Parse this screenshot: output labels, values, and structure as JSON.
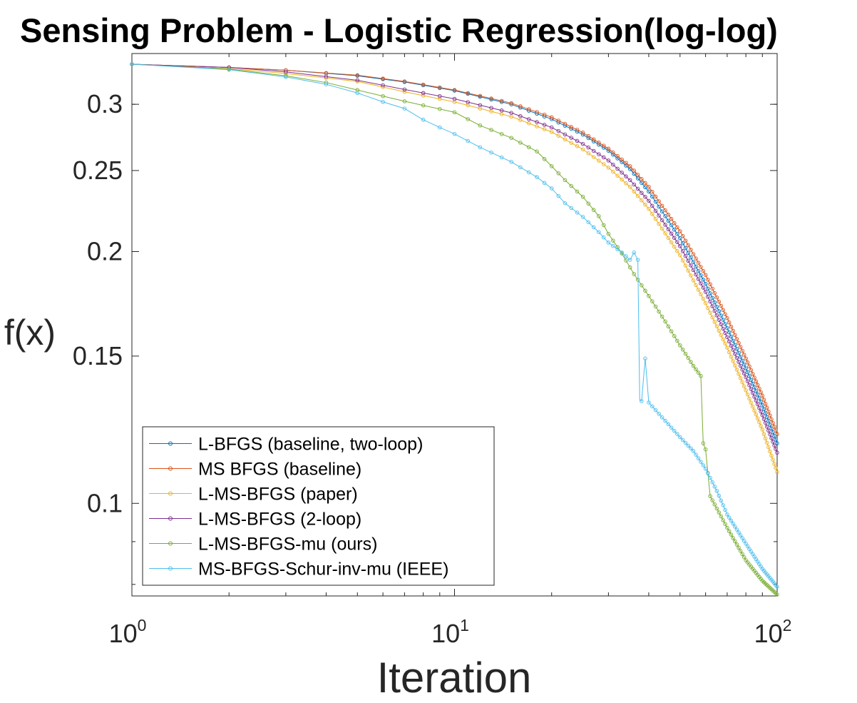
{
  "chart_data": {
    "type": "line",
    "title": "Sensing Problem - Logistic Regression(log-log)",
    "xlabel": "Iteration",
    "ylabel": "f(x)",
    "xscale": "log",
    "yscale": "log",
    "xlim": [
      1,
      100
    ],
    "ylim": [
      0.0775,
      0.345
    ],
    "xticks": [
      1,
      10,
      100
    ],
    "xtick_labels": [
      {
        "base": "10",
        "exp": "0"
      },
      {
        "base": "10",
        "exp": "1"
      },
      {
        "base": "10",
        "exp": "2"
      }
    ],
    "yticks": [
      0.1,
      0.15,
      0.2,
      0.25,
      0.3
    ],
    "ytick_labels": [
      "0.1",
      "0.15",
      "0.2",
      "0.25",
      "0.3"
    ],
    "legend_position": "bottom-left",
    "grid": false,
    "series": [
      {
        "name": "L-BFGS (baseline, two-loop)",
        "color": "#0072BD",
        "points": [
          [
            1,
            0.335
          ],
          [
            2,
            0.332
          ],
          [
            3,
            0.3295
          ],
          [
            5,
            0.3245
          ],
          [
            7,
            0.319
          ],
          [
            10,
            0.3115
          ],
          [
            15,
            0.3
          ],
          [
            20,
            0.288
          ],
          [
            25,
            0.276
          ],
          [
            30,
            0.264
          ],
          [
            35,
            0.251
          ],
          [
            40,
            0.236
          ],
          [
            50,
            0.2075
          ],
          [
            60,
            0.183
          ],
          [
            70,
            0.162
          ],
          [
            80,
            0.145
          ],
          [
            90,
            0.131
          ],
          [
            100,
            0.118
          ]
        ]
      },
      {
        "name": "MS BFGS (baseline)",
        "color": "#D95319",
        "points": [
          [
            1,
            0.335
          ],
          [
            2,
            0.332
          ],
          [
            3,
            0.3295
          ],
          [
            5,
            0.325
          ],
          [
            7,
            0.3195
          ],
          [
            10,
            0.312
          ],
          [
            15,
            0.301
          ],
          [
            20,
            0.2895
          ],
          [
            25,
            0.2775
          ],
          [
            30,
            0.2655
          ],
          [
            35,
            0.253
          ],
          [
            40,
            0.239
          ],
          [
            50,
            0.2115
          ],
          [
            60,
            0.1875
          ],
          [
            70,
            0.1665
          ],
          [
            80,
            0.149
          ],
          [
            90,
            0.1345
          ],
          [
            100,
            0.121
          ]
        ]
      },
      {
        "name": "L-MS-BFGS (paper)",
        "color": "#EDB120",
        "points": [
          [
            1,
            0.335
          ],
          [
            2,
            0.331
          ],
          [
            3,
            0.3265
          ],
          [
            5,
            0.3195
          ],
          [
            7,
            0.3105
          ],
          [
            10,
            0.302
          ],
          [
            15,
            0.29
          ],
          [
            20,
            0.278
          ],
          [
            25,
            0.265
          ],
          [
            30,
            0.252
          ],
          [
            35,
            0.239
          ],
          [
            40,
            0.225
          ],
          [
            50,
            0.198
          ],
          [
            60,
            0.1735
          ],
          [
            70,
            0.1535
          ],
          [
            80,
            0.1365
          ],
          [
            90,
            0.1225
          ],
          [
            100,
            0.109
          ]
        ]
      },
      {
        "name": "L-MS-BFGS (2-loop)",
        "color": "#7E2F8E",
        "points": [
          [
            1,
            0.335
          ],
          [
            2,
            0.332
          ],
          [
            3,
            0.328
          ],
          [
            5,
            0.3205
          ],
          [
            7,
            0.3125
          ],
          [
            10,
            0.3045
          ],
          [
            15,
            0.293
          ],
          [
            20,
            0.2815
          ],
          [
            25,
            0.269
          ],
          [
            30,
            0.257
          ],
          [
            35,
            0.2435
          ],
          [
            40,
            0.23
          ],
          [
            50,
            0.203
          ],
          [
            60,
            0.179
          ],
          [
            70,
            0.158
          ],
          [
            80,
            0.1415
          ],
          [
            90,
            0.1275
          ],
          [
            100,
            0.115
          ]
        ]
      },
      {
        "name": "L-MS-BFGS-mu (ours)",
        "color": "#77AC30",
        "points": [
          [
            1,
            0.335
          ],
          [
            2,
            0.3305
          ],
          [
            3,
            0.3245
          ],
          [
            4,
            0.3185
          ],
          [
            5,
            0.312
          ],
          [
            7,
            0.3025
          ],
          [
            10,
            0.2935
          ],
          [
            12,
            0.283
          ],
          [
            15,
            0.2735
          ],
          [
            18,
            0.2635
          ],
          [
            20,
            0.253
          ],
          [
            22,
            0.2435
          ],
          [
            25,
            0.2325
          ],
          [
            28,
            0.2205
          ],
          [
            30,
            0.21
          ],
          [
            33,
            0.199
          ],
          [
            36,
            0.188
          ],
          [
            40,
            0.177
          ],
          [
            45,
            0.165
          ],
          [
            50,
            0.1545
          ],
          [
            55,
            0.146
          ],
          [
            58,
            0.142
          ],
          [
            59,
            0.118
          ],
          [
            60,
            0.116
          ],
          [
            62,
            0.102
          ],
          [
            70,
            0.0935
          ],
          [
            80,
            0.0855
          ],
          [
            90,
            0.0808
          ],
          [
            100,
            0.0778
          ]
        ]
      },
      {
        "name": "MS-BFGS-Schur-inv-mu (IEEE)",
        "color": "#4DBEEE",
        "points": [
          [
            1,
            0.335
          ],
          [
            2,
            0.33
          ],
          [
            3,
            0.3235
          ],
          [
            4,
            0.317
          ],
          [
            5,
            0.3095
          ],
          [
            6,
            0.302
          ],
          [
            7,
            0.2965
          ],
          [
            8,
            0.2875
          ],
          [
            9,
            0.2815
          ],
          [
            10,
            0.2765
          ],
          [
            12,
            0.2665
          ],
          [
            15,
            0.256
          ],
          [
            18,
            0.2455
          ],
          [
            20,
            0.238
          ],
          [
            22,
            0.2285
          ],
          [
            25,
            0.22
          ],
          [
            28,
            0.211
          ],
          [
            30,
            0.205
          ],
          [
            33,
            0.1995
          ],
          [
            35,
            0.1955
          ],
          [
            36,
            0.1995
          ],
          [
            37,
            0.1955
          ],
          [
            37.5,
            0.133
          ],
          [
            38,
            0.1325
          ],
          [
            39,
            0.149
          ],
          [
            40,
            0.132
          ],
          [
            45,
            0.1255
          ],
          [
            50,
            0.12
          ],
          [
            55,
            0.1155
          ],
          [
            60,
            0.11
          ],
          [
            65,
            0.1035
          ],
          [
            70,
            0.097
          ],
          [
            80,
            0.0895
          ],
          [
            90,
            0.0835
          ],
          [
            100,
            0.0795
          ]
        ]
      }
    ]
  }
}
